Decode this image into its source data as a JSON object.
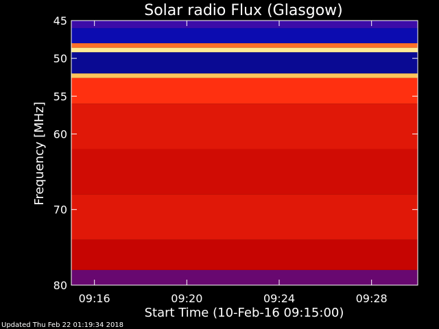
{
  "chart_data": {
    "type": "heatmap",
    "title": "Solar radio Flux (Glasgow)",
    "xlabel": "Start Time (10-Feb-16 09:15:00)",
    "ylabel": "Frequency [MHz]",
    "x_range": [
      "09:15",
      "09:30"
    ],
    "y_range": [
      45,
      80
    ],
    "y_ticks": [
      45,
      50,
      55,
      60,
      70,
      80
    ],
    "x_ticks": [
      "09:16",
      "09:20",
      "09:24",
      "09:28"
    ],
    "colormap": [
      "#000020",
      "#1010e0",
      "#c00000",
      "#ff3010",
      "#ffb040",
      "#ffffb0"
    ],
    "bands": [
      {
        "from": 45,
        "to": 46,
        "level": 0.25
      },
      {
        "from": 46,
        "to": 48,
        "level": 0.15
      },
      {
        "from": 48,
        "to": 48.6,
        "level": 0.7
      },
      {
        "from": 48.6,
        "to": 49.2,
        "level": 0.95
      },
      {
        "from": 49.2,
        "to": 52,
        "level": 0.12
      },
      {
        "from": 52,
        "to": 52.6,
        "level": 0.85
      },
      {
        "from": 52.6,
        "to": 56,
        "level": 0.6
      },
      {
        "from": 56,
        "to": 62,
        "level": 0.5
      },
      {
        "from": 62,
        "to": 68,
        "level": 0.45
      },
      {
        "from": 68,
        "to": 74,
        "level": 0.5
      },
      {
        "from": 74,
        "to": 78,
        "level": 0.42
      },
      {
        "from": 78,
        "to": 80,
        "level": 0.3
      }
    ]
  },
  "footer": {
    "updated": "Updated Thu Feb 22 01:19:34 2018"
  }
}
